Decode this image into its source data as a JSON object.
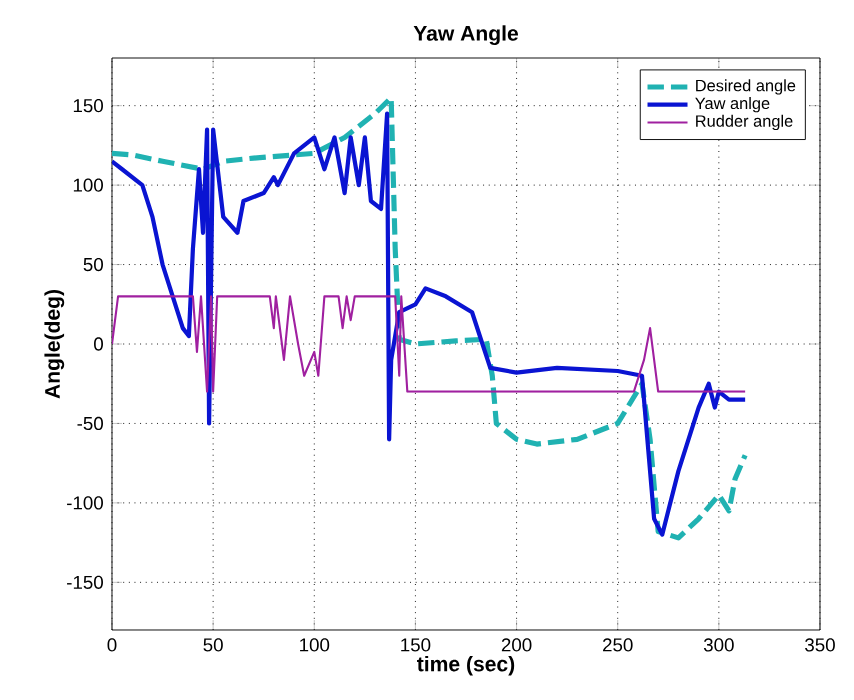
{
  "chart_data": {
    "type": "line",
    "title": "Yaw Angle",
    "xlabel": "time (sec)",
    "ylabel": "Angle(deg)",
    "xlim": [
      0,
      350
    ],
    "xticks": [
      0,
      50,
      100,
      150,
      200,
      250,
      300,
      350
    ],
    "ylim": [
      -180,
      180
    ],
    "yticks": [
      -150,
      -100,
      -50,
      0,
      50,
      100,
      150
    ],
    "grid": true,
    "legend": "top right",
    "marker": "none",
    "series": [
      {
        "name": "Desired angle",
        "color": "#20b2b2",
        "line_style": "dashed",
        "x": [
          0,
          10,
          25,
          45,
          55,
          70,
          100,
          115,
          130,
          138,
          140,
          142,
          150,
          170,
          185,
          188,
          190,
          200,
          210,
          230,
          250,
          262,
          266,
          270,
          280,
          290,
          300,
          305,
          308,
          313
        ],
        "values": [
          120,
          119,
          115,
          110,
          115,
          117,
          120,
          130,
          145,
          155,
          60,
          3,
          0,
          2,
          3,
          -20,
          -50,
          -60,
          -63,
          -60,
          -50,
          -25,
          -60,
          -118,
          -122,
          -110,
          -95,
          -105,
          -85,
          -70
        ]
      },
      {
        "name": "Yaw anlge",
        "color": "#0a14d2",
        "line_style": "solid",
        "x": [
          0,
          5,
          10,
          15,
          20,
          25,
          30,
          35,
          38,
          40,
          43,
          45,
          47,
          48,
          50,
          55,
          62,
          65,
          75,
          80,
          82,
          90,
          100,
          105,
          110,
          115,
          118,
          122,
          125,
          128,
          133,
          136,
          137,
          138,
          142,
          150,
          155,
          165,
          178,
          187,
          200,
          220,
          250,
          262,
          268,
          272,
          280,
          290,
          295,
          298,
          300,
          305,
          313
        ],
        "values": [
          115,
          110,
          105,
          100,
          80,
          50,
          30,
          10,
          5,
          60,
          110,
          70,
          135,
          -50,
          135,
          80,
          70,
          90,
          95,
          105,
          100,
          120,
          130,
          110,
          130,
          95,
          130,
          100,
          130,
          90,
          85,
          145,
          -60,
          -10,
          20,
          25,
          35,
          30,
          20,
          -15,
          -18,
          -15,
          -17,
          -20,
          -110,
          -120,
          -80,
          -40,
          -25,
          -40,
          -30,
          -35,
          -35
        ]
      },
      {
        "name": "Rudder angle",
        "color": "#a020a0",
        "line_style": "solid",
        "x": [
          0,
          3,
          40,
          42,
          44,
          47,
          49,
          50,
          52,
          78,
          80,
          81,
          85,
          88,
          92,
          95,
          100,
          102,
          105,
          112,
          114,
          116,
          118,
          120,
          140,
          142,
          143,
          146,
          258,
          263,
          266,
          270,
          313
        ],
        "values": [
          0,
          30,
          30,
          -5,
          30,
          -30,
          30,
          -30,
          30,
          30,
          10,
          30,
          -10,
          30,
          0,
          -20,
          -5,
          -20,
          30,
          30,
          10,
          30,
          15,
          30,
          30,
          -20,
          30,
          -30,
          -30,
          -10,
          10,
          -30,
          -30
        ]
      }
    ]
  }
}
